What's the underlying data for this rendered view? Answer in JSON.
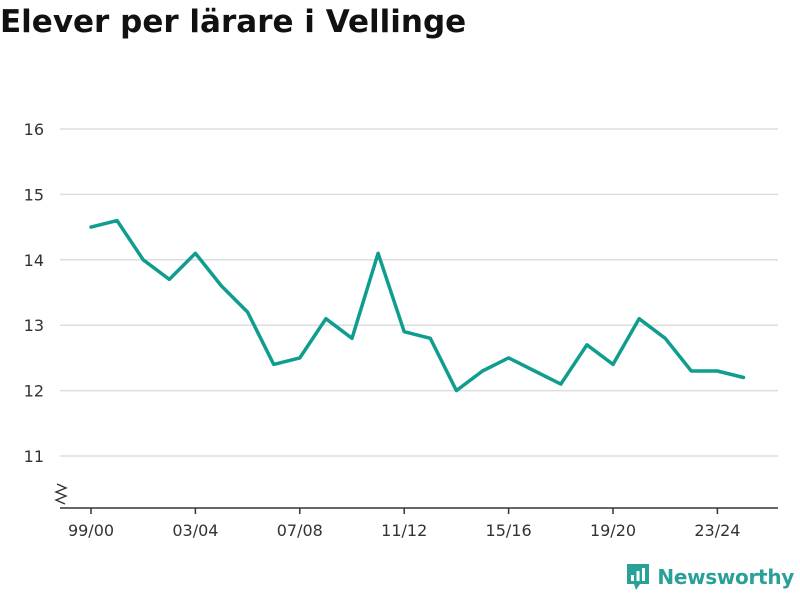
{
  "title": "Elever per lärare i Vellinge",
  "brand": {
    "name": "Newsworthy",
    "color": "#2aa198"
  },
  "chart_data": {
    "type": "line",
    "title": "Elever per lärare i Vellinge",
    "xlabel": "",
    "ylabel": "",
    "ylim": [
      10.3,
      16
    ],
    "y_ticks": [
      11,
      12,
      13,
      14,
      15,
      16
    ],
    "y_axis_break": true,
    "grid": true,
    "x_tick_labels": [
      "99/00",
      "03/04",
      "07/08",
      "11/12",
      "15/16",
      "19/20",
      "23/24"
    ],
    "x": [
      "99/00",
      "00/01",
      "01/02",
      "02/03",
      "03/04",
      "04/05",
      "05/06",
      "06/07",
      "07/08",
      "08/09",
      "09/10",
      "10/11",
      "11/12",
      "12/13",
      "13/14",
      "14/15",
      "15/16",
      "16/17",
      "17/18",
      "18/19",
      "19/20",
      "20/21",
      "21/22",
      "22/23",
      "23/24",
      "24/25"
    ],
    "series": [
      {
        "values": [
          14.5,
          14.6,
          14.0,
          13.7,
          14.1,
          13.6,
          13.2,
          12.4,
          12.5,
          13.1,
          12.8,
          14.1,
          12.9,
          12.8,
          12.0,
          12.3,
          12.5,
          12.3,
          12.1,
          12.7,
          12.4,
          13.1,
          12.8,
          12.3,
          12.3,
          12.2
        ],
        "color": "#0f9d8f"
      }
    ]
  }
}
